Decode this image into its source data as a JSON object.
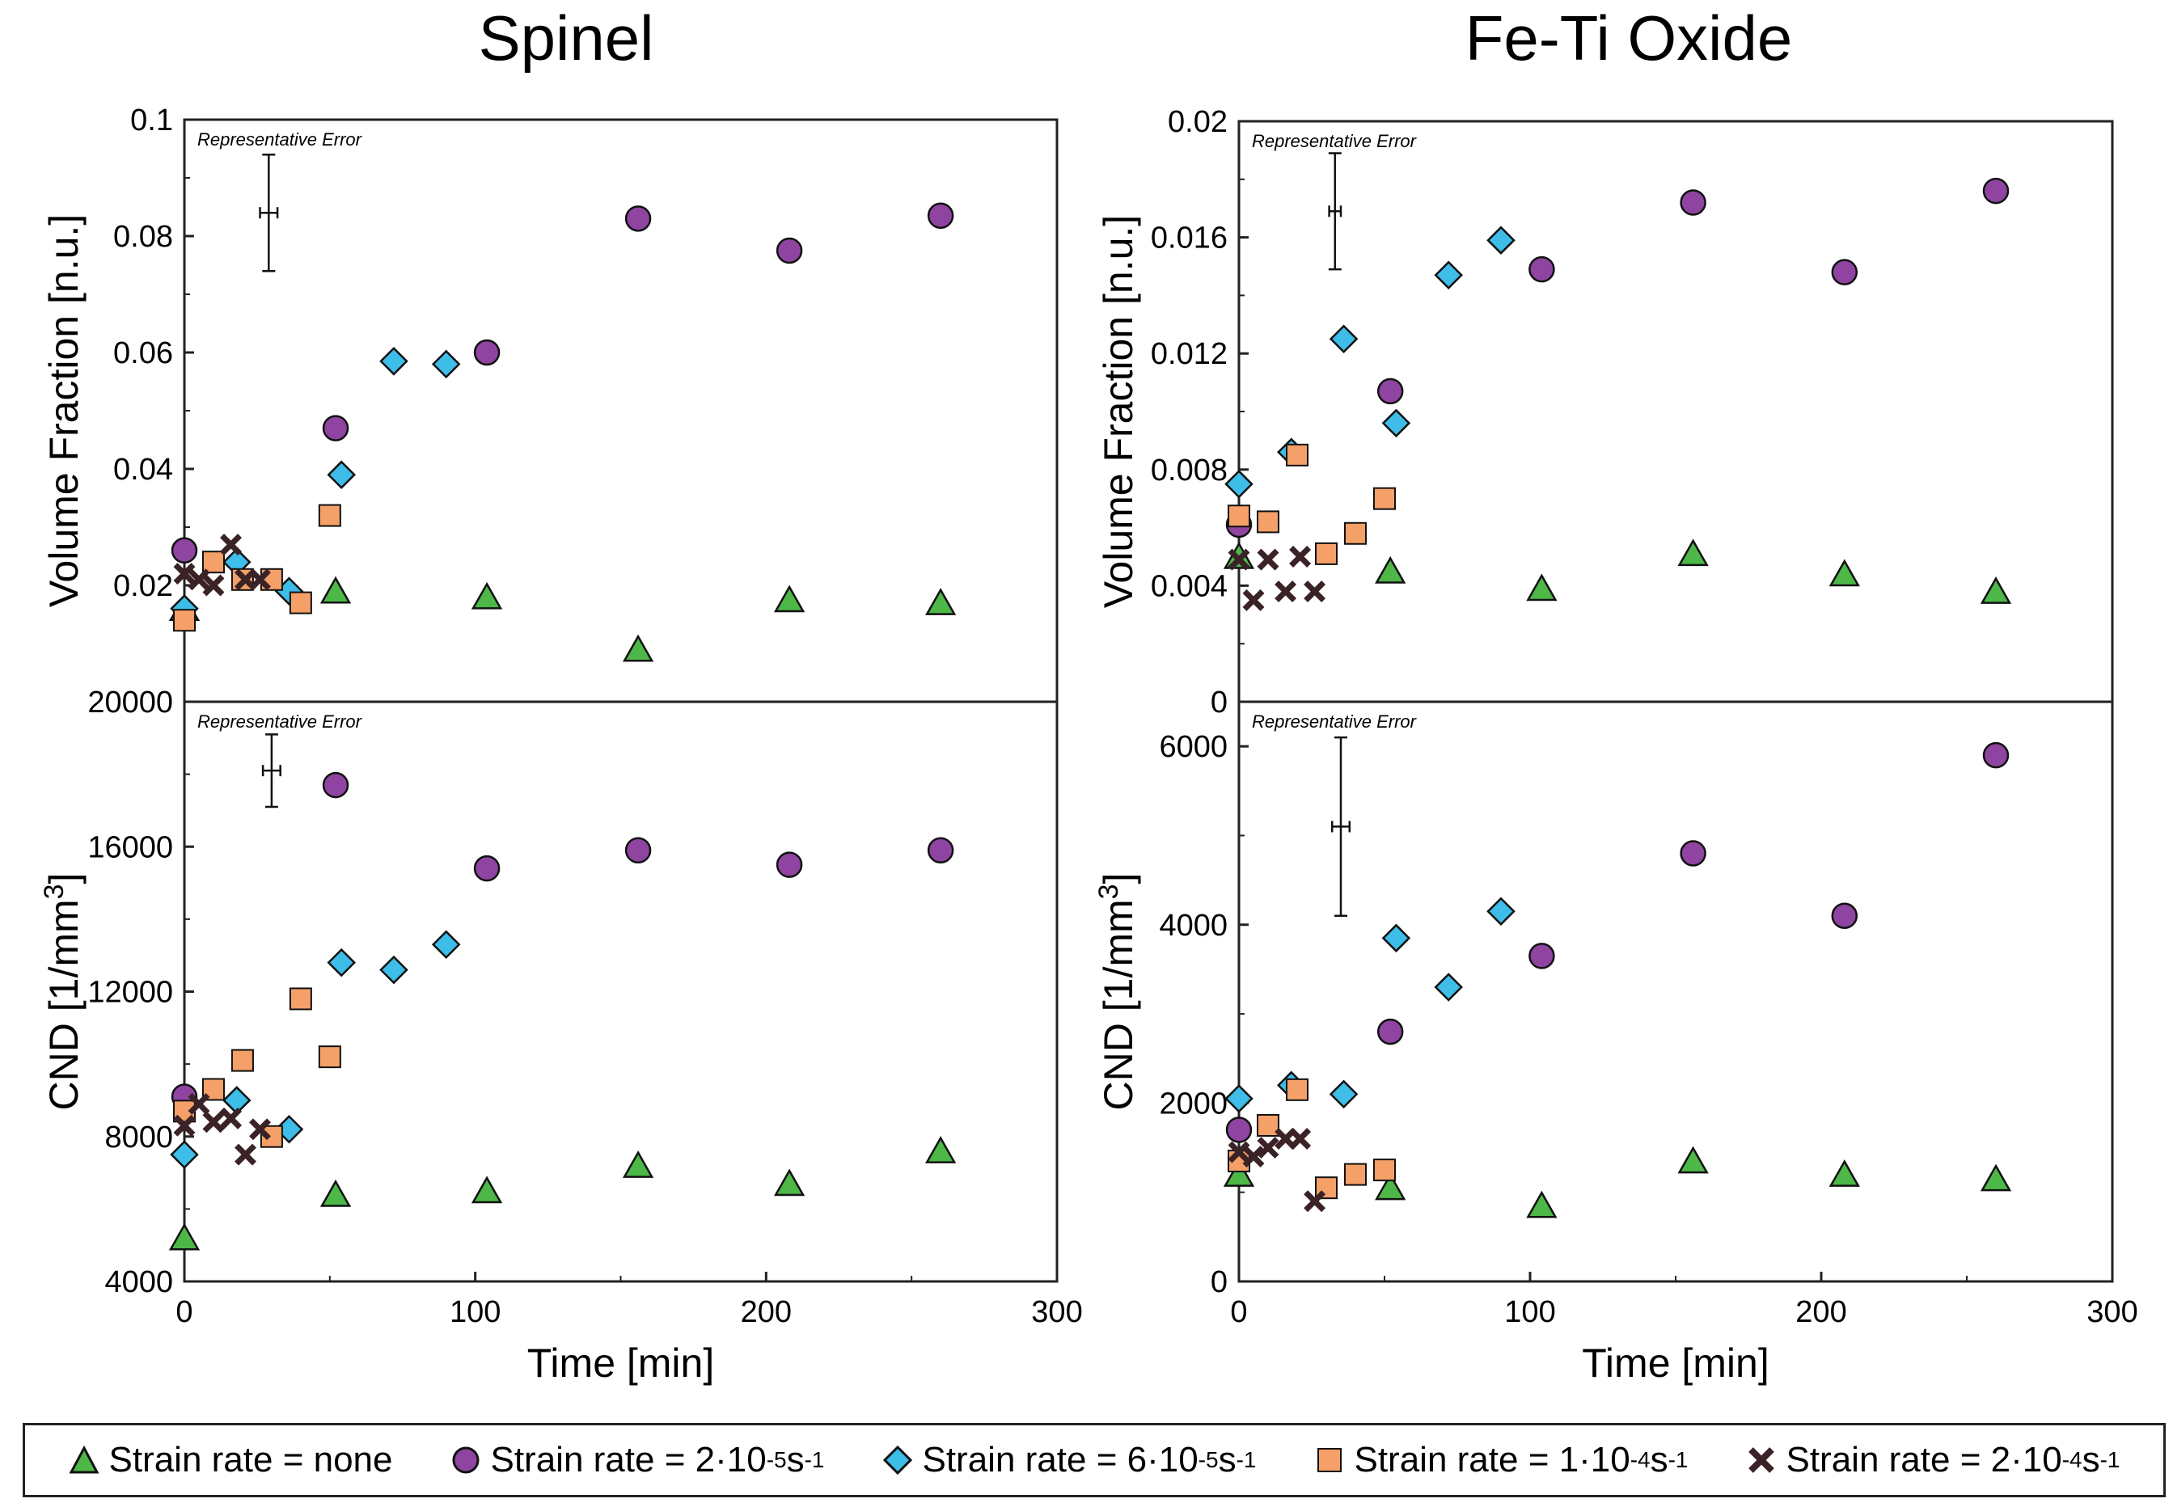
{
  "column_titles": [
    "Spinel",
    "Fe-Ti Oxide"
  ],
  "legend": [
    {
      "series": "none",
      "marker": "triangle",
      "color": "#4db848",
      "text": "Strain rate = none",
      "exp": "",
      "unit": ""
    },
    {
      "series": "2e-5",
      "marker": "circle",
      "color": "#8e44a0",
      "text": "Strain rate = 2·10",
      "exp": "-5",
      "unit": " s"
    },
    {
      "series": "6e-5",
      "marker": "diamond",
      "color": "#3dbde8",
      "text": "Strain rate = 6·10",
      "exp": "-5",
      "unit": " s"
    },
    {
      "series": "1e-4",
      "marker": "square",
      "color": "#f4a068",
      "text": "Strain rate = 1·10",
      "exp": "-4",
      "unit": " s"
    },
    {
      "series": "2e-4",
      "marker": "x",
      "color": "#3a2226",
      "text": "Strain rate = 2·10",
      "exp": "-4",
      "unit": " s"
    }
  ],
  "legend_unit_exp": "-1",
  "chart_data": [
    {
      "id": "spinel-vf",
      "type": "scatter",
      "column_title": "Spinel",
      "ylabel": "Volume Fraction [n.u.]",
      "xlabel": "",
      "xlim": [
        0,
        300
      ],
      "ylim": [
        0,
        0.1
      ],
      "yticks": [
        "0.02",
        "0.04",
        "0.06",
        "0.08",
        "0.1"
      ],
      "ytick_values": [
        0.02,
        0.04,
        0.06,
        0.08,
        0.1
      ],
      "annotation": "Representative Error",
      "error_bar": {
        "x": 29,
        "y": 0.084,
        "yerr": 0.01,
        "xerr": 3
      },
      "series": [
        {
          "name": "Strain rate = none",
          "marker": "triangle",
          "color": "#4db848",
          "x": [
            0,
            52,
            104,
            156,
            208,
            260
          ],
          "y": [
            0.016,
            0.019,
            0.018,
            0.009,
            0.0175,
            0.017
          ]
        },
        {
          "name": "Strain rate = 2·10-5 s-1",
          "marker": "circle",
          "color": "#8e44a0",
          "x": [
            0,
            52,
            104,
            156,
            208,
            260
          ],
          "y": [
            0.026,
            0.047,
            0.06,
            0.083,
            0.0775,
            0.0835
          ]
        },
        {
          "name": "Strain rate = 6·10-5 s-1",
          "marker": "diamond",
          "color": "#3dbde8",
          "x": [
            0,
            18,
            36,
            54,
            72,
            90
          ],
          "y": [
            0.016,
            0.024,
            0.019,
            0.039,
            0.0585,
            0.058
          ]
        },
        {
          "name": "Strain rate = 1·10-4 s-1",
          "marker": "square",
          "color": "#f4a068",
          "x": [
            0,
            10,
            20,
            30,
            40,
            50
          ],
          "y": [
            0.014,
            0.024,
            0.021,
            0.021,
            0.017,
            0.032
          ]
        },
        {
          "name": "Strain rate = 2·10-4 s-1",
          "marker": "x",
          "color": "#3a2226",
          "x": [
            0,
            5,
            10,
            16,
            21,
            26
          ],
          "y": [
            0.022,
            0.021,
            0.02,
            0.027,
            0.021,
            0.021
          ]
        }
      ]
    },
    {
      "id": "spinel-cnd",
      "type": "scatter",
      "column_title": "Spinel",
      "ylabel": "CND [1/mm",
      "ylabel_sup": "3",
      "ylabel_end": "]",
      "xlabel": "Time [min]",
      "xlim": [
        0,
        300
      ],
      "ylim": [
        4000,
        20000
      ],
      "yticks": [
        "4000",
        "8000",
        "12000",
        "16000",
        "20000"
      ],
      "ytick_values": [
        4000,
        8000,
        12000,
        16000,
        20000
      ],
      "xticks": [
        "0",
        "100",
        "200",
        "300"
      ],
      "xtick_values": [
        0,
        100,
        200,
        300
      ],
      "annotation": "Representative Error",
      "error_bar": {
        "x": 30,
        "y": 18100,
        "yerr": 1000,
        "xerr": 3
      },
      "series": [
        {
          "name": "Strain rate = none",
          "marker": "triangle",
          "color": "#4db848",
          "x": [
            0,
            52,
            104,
            156,
            208,
            260
          ],
          "y": [
            5200,
            6400,
            6500,
            7200,
            6700,
            7600
          ]
        },
        {
          "name": "Strain rate = 2·10-5 s-1",
          "marker": "circle",
          "color": "#8e44a0",
          "x": [
            0,
            52,
            104,
            156,
            208,
            260
          ],
          "y": [
            9100,
            17700,
            15400,
            15900,
            15500,
            15900
          ]
        },
        {
          "name": "Strain rate = 6·10-5 s-1",
          "marker": "diamond",
          "color": "#3dbde8",
          "x": [
            0,
            18,
            36,
            54,
            72,
            90
          ],
          "y": [
            7500,
            9000,
            8200,
            12800,
            12600,
            13300
          ]
        },
        {
          "name": "Strain rate = 1·10-4 s-1",
          "marker": "square",
          "color": "#f4a068",
          "x": [
            0,
            10,
            20,
            30,
            40,
            50
          ],
          "y": [
            8700,
            9300,
            10100,
            8000,
            11800,
            10200
          ]
        },
        {
          "name": "Strain rate = 2·10-4 s-1",
          "marker": "x",
          "color": "#3a2226",
          "x": [
            0,
            5,
            10,
            16,
            21,
            26
          ],
          "y": [
            8300,
            8900,
            8400,
            8500,
            7500,
            8200
          ]
        }
      ]
    },
    {
      "id": "feti-vf",
      "type": "scatter",
      "column_title": "Fe-Ti Oxide",
      "ylabel": "Volume Fraction [n.u.]",
      "xlabel": "",
      "xlim": [
        0,
        300
      ],
      "ylim": [
        0,
        0.02
      ],
      "yticks": [
        "0",
        "0.004",
        "0.008",
        "0.012",
        "0.016",
        "0.02"
      ],
      "ytick_values": [
        0,
        0.004,
        0.008,
        0.012,
        0.016,
        0.02
      ],
      "annotation": "Representative Error",
      "error_bar": {
        "x": 33,
        "y": 0.0169,
        "yerr": 0.002,
        "xerr": 2
      },
      "series": [
        {
          "name": "Strain rate = none",
          "marker": "triangle",
          "color": "#4db848",
          "x": [
            0,
            52,
            104,
            156,
            208,
            260
          ],
          "y": [
            0.005,
            0.0045,
            0.0039,
            0.0051,
            0.0044,
            0.0038
          ]
        },
        {
          "name": "Strain rate = 2·10-5 s-1",
          "marker": "circle",
          "color": "#8e44a0",
          "x": [
            0,
            52,
            104,
            156,
            208,
            260
          ],
          "y": [
            0.0061,
            0.0107,
            0.0149,
            0.0172,
            0.0148,
            0.0176
          ]
        },
        {
          "name": "Strain rate = 6·10-5 s-1",
          "marker": "diamond",
          "color": "#3dbde8",
          "x": [
            0,
            18,
            36,
            54,
            72,
            90
          ],
          "y": [
            0.0075,
            0.0086,
            0.0125,
            0.0096,
            0.0147,
            0.0159
          ]
        },
        {
          "name": "Strain rate = 1·10-4 s-1",
          "marker": "square",
          "color": "#f4a068",
          "x": [
            0,
            10,
            20,
            30,
            40,
            50
          ],
          "y": [
            0.0064,
            0.0062,
            0.0085,
            0.0051,
            0.0058,
            0.007
          ]
        },
        {
          "name": "Strain rate = 2·10-4 s-1",
          "marker": "x",
          "color": "#3a2226",
          "x": [
            0,
            5,
            10,
            16,
            21,
            26
          ],
          "y": [
            0.0049,
            0.0035,
            0.0049,
            0.0038,
            0.005,
            0.0038
          ]
        }
      ]
    },
    {
      "id": "feti-cnd",
      "type": "scatter",
      "column_title": "Fe-Ti Oxide",
      "ylabel": "CND [1/mm",
      "ylabel_sup": "3",
      "ylabel_end": "]",
      "xlabel": "Time [min]",
      "xlim": [
        0,
        300
      ],
      "ylim": [
        0,
        6500
      ],
      "yticks": [
        "0",
        "2000",
        "4000",
        "6000"
      ],
      "ytick_values": [
        0,
        2000,
        4000,
        6000
      ],
      "xticks": [
        "0",
        "100",
        "200",
        "300"
      ],
      "xtick_values": [
        0,
        100,
        200,
        300
      ],
      "annotation": "Representative Error",
      "error_bar": {
        "x": 35,
        "y": 5100,
        "yerr": 1000,
        "xerr": 3
      },
      "series": [
        {
          "name": "Strain rate = none",
          "marker": "triangle",
          "color": "#4db848",
          "x": [
            0,
            52,
            104,
            156,
            208,
            260
          ],
          "y": [
            1200,
            1050,
            850,
            1350,
            1200,
            1150
          ]
        },
        {
          "name": "Strain rate = 2·10-5 s-1",
          "marker": "circle",
          "color": "#8e44a0",
          "x": [
            0,
            52,
            104,
            156,
            208,
            260
          ],
          "y": [
            1700,
            2800,
            3650,
            4800,
            4100,
            5900
          ]
        },
        {
          "name": "Strain rate = 6·10-5 s-1",
          "marker": "diamond",
          "color": "#3dbde8",
          "x": [
            0,
            18,
            36,
            54,
            72,
            90
          ],
          "y": [
            2050,
            2200,
            2100,
            3850,
            3300,
            4150
          ]
        },
        {
          "name": "Strain rate = 1·10-4 s-1",
          "marker": "square",
          "color": "#f4a068",
          "x": [
            0,
            10,
            20,
            30,
            40,
            50
          ],
          "y": [
            1350,
            1750,
            2150,
            1050,
            1200,
            1250
          ]
        },
        {
          "name": "Strain rate = 2·10-4 s-1",
          "marker": "x",
          "color": "#3a2226",
          "x": [
            0,
            5,
            10,
            16,
            21,
            26
          ],
          "y": [
            1450,
            1400,
            1500,
            1600,
            1600,
            900
          ]
        }
      ]
    }
  ]
}
